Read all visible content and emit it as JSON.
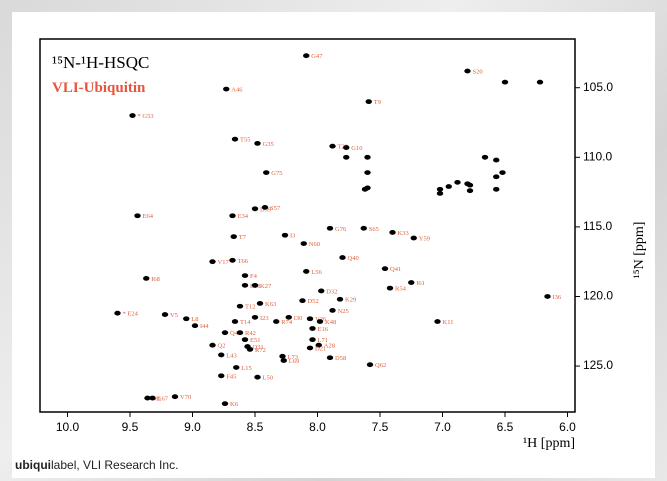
{
  "chart_data": {
    "type": "scatter",
    "title": "¹⁵N-¹H-HSQC",
    "subtitle": "VLI-Ubiquitin",
    "x_label": "¹H [ppm]",
    "y_label": "¹⁵N [ppm]",
    "xlim": [
      10.22,
      5.94
    ],
    "ylim": [
      101.5,
      128.3
    ],
    "xticks": [
      {
        "value": 10,
        "label": "10.0"
      },
      {
        "value": 9.5,
        "label": "9.5"
      },
      {
        "value": 9,
        "label": "9.0"
      },
      {
        "value": 8.5,
        "label": "8.5"
      },
      {
        "value": 8,
        "label": "8.0"
      },
      {
        "value": 7.5,
        "label": "7.5"
      },
      {
        "value": 7,
        "label": "7.0"
      },
      {
        "value": 6.5,
        "label": "6.5"
      },
      {
        "value": 6,
        "label": "6.0"
      }
    ],
    "yticks": [
      {
        "value": 105,
        "label": "105.0"
      },
      {
        "value": 110,
        "label": "110.0"
      },
      {
        "value": 115,
        "label": "115.0"
      },
      {
        "value": 120,
        "label": "120.0"
      },
      {
        "value": 125,
        "label": "125.0"
      }
    ],
    "color": "#000000",
    "label_color": "#e0603c",
    "labels": [
      "G47",
      "S20",
      "A46",
      "T9",
      "* G53",
      "T55",
      "G35",
      "T22",
      "G10",
      "G75",
      "D39",
      "S57",
      "E34",
      "E64",
      "T7",
      "I3",
      "G76",
      "S65",
      "K33",
      "Y59",
      "N60",
      "Q40",
      "V17",
      "T66",
      "L56",
      "Q41",
      "F4",
      "I61",
      "I68",
      "E18",
      "K27",
      "R54",
      "D32",
      "I36",
      "* E24",
      "K29",
      "D52",
      "K63",
      "V5",
      "T12",
      "N25",
      "L8",
      "I30",
      "V26",
      "T14",
      "I23",
      "R74",
      "K11",
      "K48",
      "E16",
      "I44",
      "Q49",
      "R42",
      "E51",
      "L71",
      "A28",
      "Q2",
      "Q31",
      "R72",
      "D21",
      "L73",
      "D58",
      "L43",
      "L69",
      "Q62",
      "L15",
      "F45",
      "L50",
      "M1",
      "L67",
      "V70",
      "K6",
      null,
      null,
      null,
      null,
      null,
      null,
      null,
      null,
      null,
      null,
      null,
      null,
      null,
      null,
      null,
      null,
      null,
      null,
      null
    ],
    "x": [
      8.09,
      6.8,
      8.73,
      7.59,
      9.48,
      8.66,
      8.48,
      7.88,
      7.77,
      8.41,
      8.5,
      8.42,
      8.68,
      9.44,
      8.67,
      8.26,
      7.9,
      7.63,
      7.4,
      7.23,
      8.11,
      7.8,
      8.84,
      8.68,
      8.09,
      7.46,
      8.58,
      7.25,
      9.37,
      8.58,
      8.5,
      7.42,
      7.97,
      6.16,
      9.6,
      7.82,
      8.12,
      8.46,
      9.22,
      8.62,
      7.88,
      9.05,
      8.23,
      8.06,
      8.66,
      8.5,
      8.33,
      7.04,
      7.98,
      8.04,
      8.98,
      8.74,
      8.62,
      8.58,
      8.04,
      7.99,
      8.84,
      8.56,
      8.54,
      8.06,
      8.28,
      7.9,
      8.77,
      8.27,
      7.58,
      8.65,
      8.77,
      8.48,
      9.36,
      9.32,
      9.14,
      8.74,
      6.5,
      6.22,
      7.6,
      7.77,
      7.6,
      7.6,
      7.62,
      7.02,
      7.02,
      6.95,
      6.88,
      6.8,
      6.78,
      6.78,
      6.66,
      6.57,
      6.57,
      6.52,
      6.57
    ],
    "y": [
      102.7,
      103.8,
      105.1,
      106.0,
      107.0,
      108.7,
      109.0,
      109.2,
      109.3,
      111.1,
      113.7,
      113.6,
      114.2,
      114.2,
      115.7,
      115.6,
      115.1,
      115.1,
      115.4,
      115.8,
      116.2,
      117.2,
      117.5,
      117.4,
      118.2,
      118.0,
      118.5,
      119.0,
      118.7,
      119.2,
      119.2,
      119.4,
      119.6,
      120.0,
      121.2,
      120.2,
      120.3,
      120.5,
      121.3,
      120.7,
      121.0,
      121.6,
      121.5,
      121.6,
      121.8,
      121.5,
      121.8,
      121.8,
      121.8,
      122.3,
      122.1,
      122.6,
      122.6,
      123.1,
      123.1,
      123.5,
      123.5,
      123.6,
      123.8,
      123.7,
      124.3,
      124.4,
      124.2,
      124.6,
      124.9,
      125.1,
      125.7,
      125.8,
      127.3,
      127.3,
      127.2,
      127.7,
      104.6,
      104.6,
      110.0,
      110.0,
      111.1,
      112.2,
      112.3,
      112.3,
      112.6,
      112.1,
      111.8,
      111.9,
      112.4,
      112.0,
      110.0,
      110.2,
      111.4,
      111.1,
      112.3
    ]
  },
  "caption": {
    "bold": "ubiqui",
    "text": "label, VLI Research Inc."
  }
}
